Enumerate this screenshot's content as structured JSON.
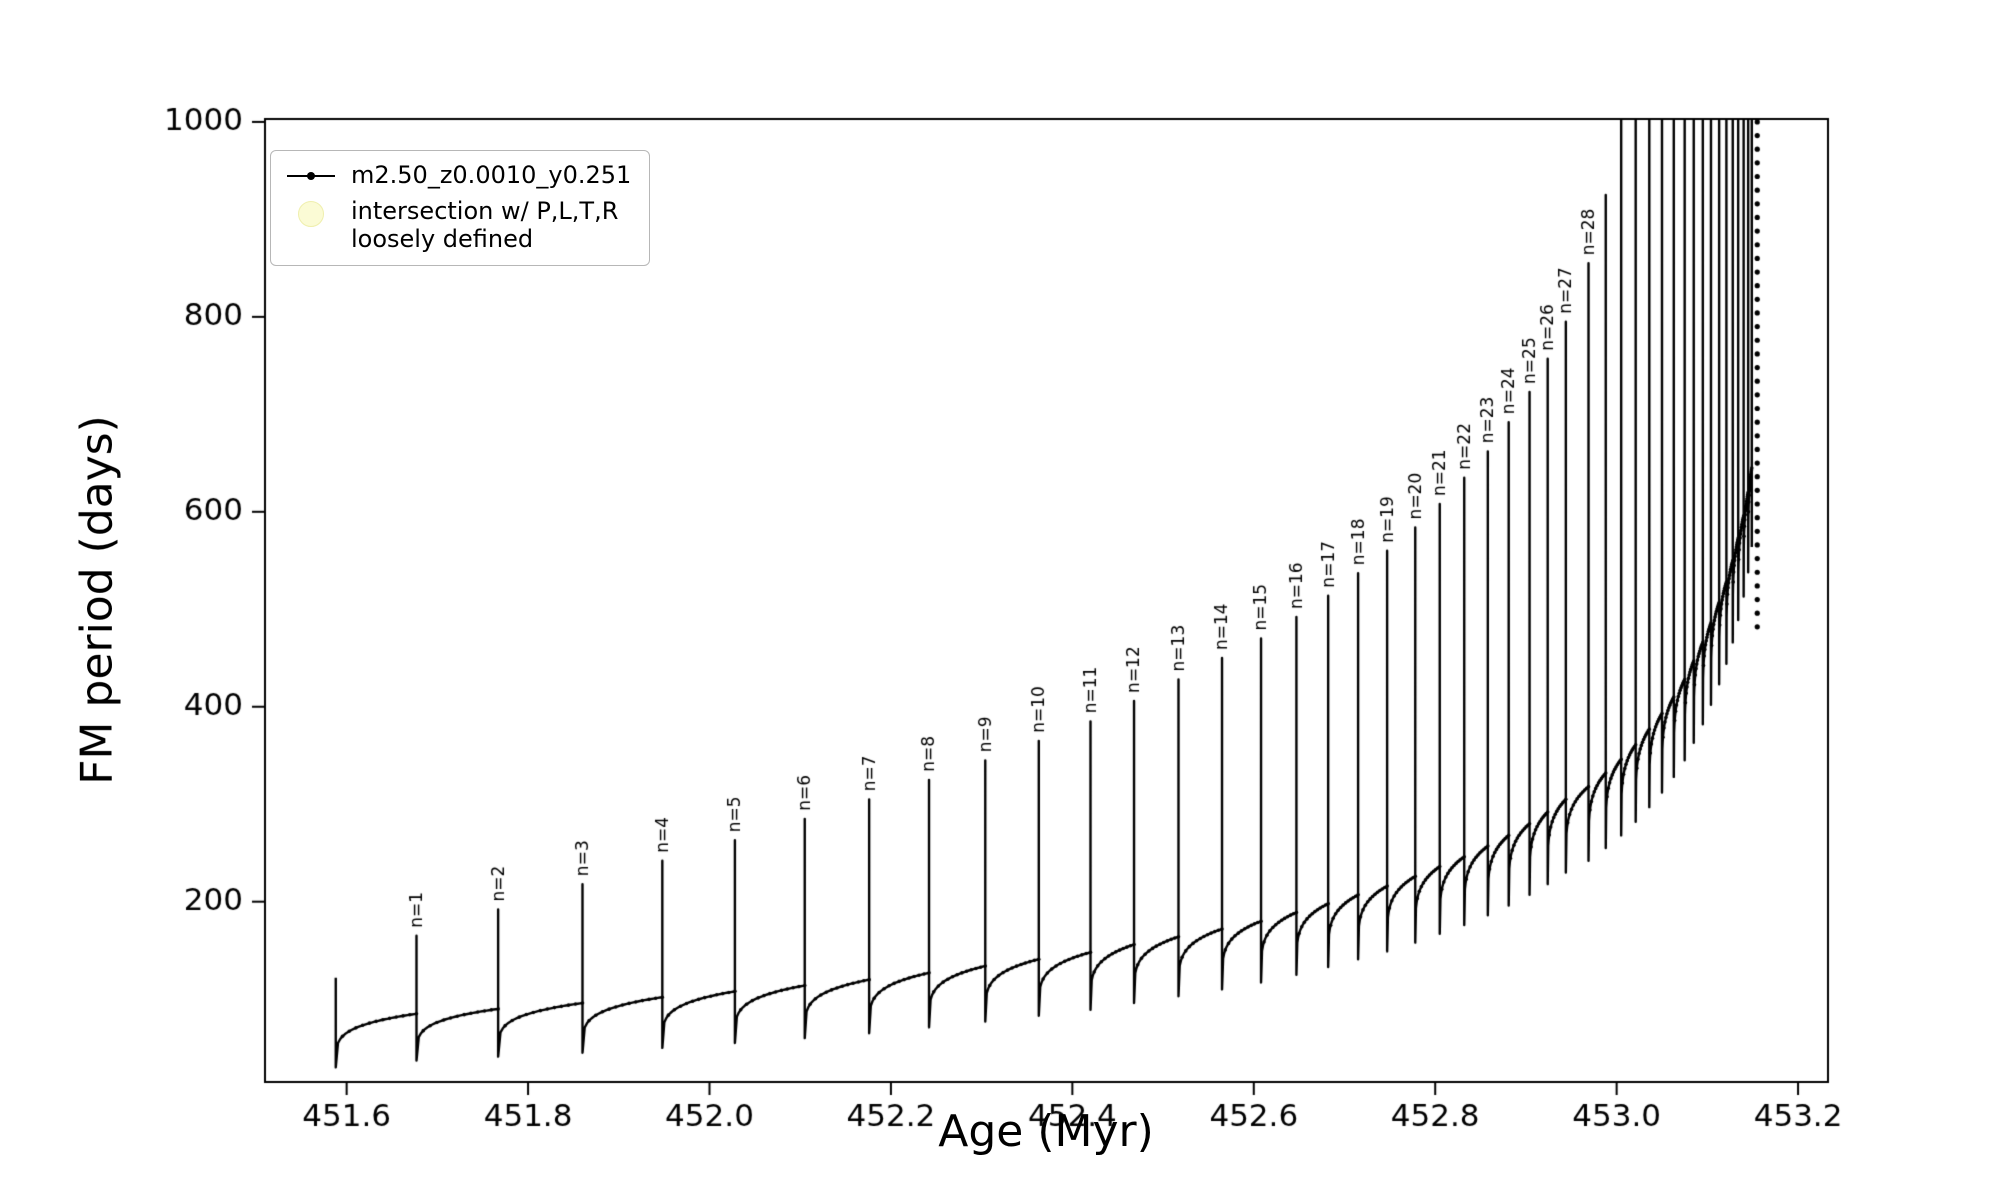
{
  "figure": {
    "background": "#ffffff",
    "line_color": "#000000"
  },
  "legend": {
    "entries": [
      {
        "label": "m2.50_z0.0010_y0.251",
        "marker": "line-dot-marker",
        "color": "#000000"
      },
      {
        "label": "intersection w/ P,L,T,R\nloosely defined",
        "marker": "pale-circle-marker",
        "color": "#fbfbce"
      }
    ]
  },
  "chart_data": {
    "type": "line",
    "title": "",
    "xlabel": "Age (Myr)",
    "ylabel": "FM period (days)",
    "xlim": [
      451.51,
      453.233
    ],
    "ylim": [
      15,
      1003
    ],
    "xticks": [
      451.6,
      451.8,
      452.0,
      452.2,
      452.4,
      452.6,
      452.8,
      453.0,
      453.2
    ],
    "xtick_labels": [
      "451.6",
      "451.8",
      "452.0",
      "452.2",
      "452.4",
      "452.6",
      "452.8",
      "453.0",
      "453.2"
    ],
    "yticks": [
      200,
      400,
      600,
      800,
      1000
    ],
    "ytick_labels": [
      "200",
      "400",
      "600",
      "800",
      "1000"
    ],
    "series_name": "m2.50_z0.0010_y0.251",
    "line_color": "#000000",
    "legend_position": "upper-left",
    "grid": false,
    "label_prefix": "n=",
    "label_max_n": 28,
    "recovery_exponent": 0.22,
    "spikes": [
      {
        "n": 0,
        "x": 451.588,
        "peak": 122,
        "base": 118,
        "dip": 30
      },
      {
        "n": 1,
        "x": 451.677,
        "peak": 165,
        "base": 85,
        "dip": 37
      },
      {
        "n": 2,
        "x": 451.767,
        "peak": 192,
        "base": 90,
        "dip": 41
      },
      {
        "n": 3,
        "x": 451.86,
        "peak": 218,
        "base": 96,
        "dip": 45
      },
      {
        "n": 4,
        "x": 451.948,
        "peak": 242,
        "base": 102,
        "dip": 50
      },
      {
        "n": 5,
        "x": 452.028,
        "peak": 263,
        "base": 108,
        "dip": 55
      },
      {
        "n": 6,
        "x": 452.105,
        "peak": 285,
        "base": 114,
        "dip": 60
      },
      {
        "n": 7,
        "x": 452.176,
        "peak": 305,
        "base": 120,
        "dip": 65
      },
      {
        "n": 8,
        "x": 452.242,
        "peak": 325,
        "base": 127,
        "dip": 71
      },
      {
        "n": 9,
        "x": 452.304,
        "peak": 345,
        "base": 134,
        "dip": 77
      },
      {
        "n": 10,
        "x": 452.363,
        "peak": 365,
        "base": 141,
        "dip": 83
      },
      {
        "n": 11,
        "x": 452.42,
        "peak": 385,
        "base": 148,
        "dip": 89
      },
      {
        "n": 12,
        "x": 452.468,
        "peak": 406,
        "base": 156,
        "dip": 96
      },
      {
        "n": 13,
        "x": 452.517,
        "peak": 428,
        "base": 164,
        "dip": 103
      },
      {
        "n": 14,
        "x": 452.565,
        "peak": 450,
        "base": 172,
        "dip": 110
      },
      {
        "n": 15,
        "x": 452.608,
        "peak": 470,
        "base": 180,
        "dip": 117
      },
      {
        "n": 16,
        "x": 452.647,
        "peak": 492,
        "base": 189,
        "dip": 125
      },
      {
        "n": 17,
        "x": 452.682,
        "peak": 514,
        "base": 198,
        "dip": 133
      },
      {
        "n": 18,
        "x": 452.715,
        "peak": 537,
        "base": 207,
        "dip": 141
      },
      {
        "n": 19,
        "x": 452.747,
        "peak": 560,
        "base": 216,
        "dip": 149
      },
      {
        "n": 20,
        "x": 452.778,
        "peak": 584,
        "base": 226,
        "dip": 158
      },
      {
        "n": 21,
        "x": 452.805,
        "peak": 608,
        "base": 236,
        "dip": 167
      },
      {
        "n": 22,
        "x": 452.832,
        "peak": 635,
        "base": 246,
        "dip": 176
      },
      {
        "n": 23,
        "x": 452.858,
        "peak": 662,
        "base": 257,
        "dip": 186
      },
      {
        "n": 24,
        "x": 452.881,
        "peak": 692,
        "base": 268,
        "dip": 196
      },
      {
        "n": 25,
        "x": 452.904,
        "peak": 723,
        "base": 280,
        "dip": 207
      },
      {
        "n": 26,
        "x": 452.924,
        "peak": 757,
        "base": 292,
        "dip": 218
      },
      {
        "n": 27,
        "x": 452.944,
        "peak": 795,
        "base": 305,
        "dip": 230
      },
      {
        "n": 28,
        "x": 452.969,
        "peak": 855,
        "base": 318,
        "dip": 242
      },
      {
        "n": 29,
        "x": 452.988,
        "peak": 925,
        "base": 332,
        "dip": 255
      },
      {
        "n": 30,
        "x": 453.005,
        "peak": 1100,
        "base": 346,
        "dip": 268
      },
      {
        "n": 31,
        "x": 453.021,
        "peak": 1100,
        "base": 361,
        "dip": 282
      },
      {
        "n": 32,
        "x": 453.036,
        "peak": 1100,
        "base": 377,
        "dip": 297
      },
      {
        "n": 33,
        "x": 453.05,
        "peak": 1100,
        "base": 393,
        "dip": 312
      },
      {
        "n": 34,
        "x": 453.063,
        "peak": 1100,
        "base": 410,
        "dip": 328
      },
      {
        "n": 35,
        "x": 453.075,
        "peak": 1100,
        "base": 428,
        "dip": 345
      },
      {
        "n": 36,
        "x": 453.085,
        "peak": 1100,
        "base": 447,
        "dip": 363
      },
      {
        "n": 37,
        "x": 453.095,
        "peak": 1100,
        "base": 466,
        "dip": 382
      },
      {
        "n": 38,
        "x": 453.104,
        "peak": 1100,
        "base": 486,
        "dip": 402
      },
      {
        "n": 39,
        "x": 453.113,
        "peak": 1100,
        "base": 507,
        "dip": 423
      },
      {
        "n": 40,
        "x": 453.121,
        "peak": 1100,
        "base": 528,
        "dip": 444
      },
      {
        "n": 41,
        "x": 453.128,
        "peak": 1100,
        "base": 550,
        "dip": 466
      },
      {
        "n": 42,
        "x": 453.134,
        "peak": 1100,
        "base": 573,
        "dip": 489
      },
      {
        "n": 43,
        "x": 453.14,
        "peak": 1100,
        "base": 596,
        "dip": 513
      },
      {
        "n": 44,
        "x": 453.145,
        "peak": 1100,
        "base": 620,
        "dip": 538
      },
      {
        "n": 45,
        "x": 453.149,
        "peak": 1100,
        "base": 645,
        "dip": 564
      }
    ],
    "tail_scatter": {
      "x": 453.155,
      "y_from": 1000,
      "y_to": 470,
      "step": 14
    }
  }
}
